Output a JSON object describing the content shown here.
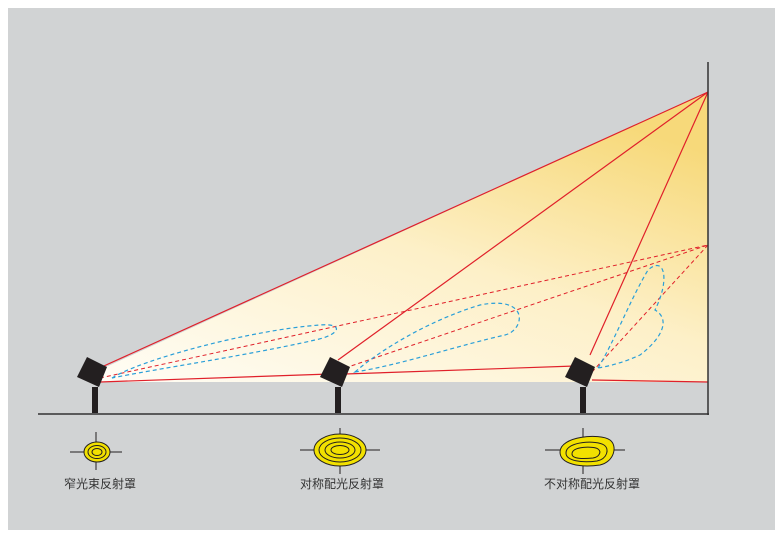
{
  "reflectors": [
    {
      "label": "窄光束反射罩"
    },
    {
      "label": "对称配光反射罩"
    },
    {
      "label": "不对称配光反射罩"
    }
  ]
}
